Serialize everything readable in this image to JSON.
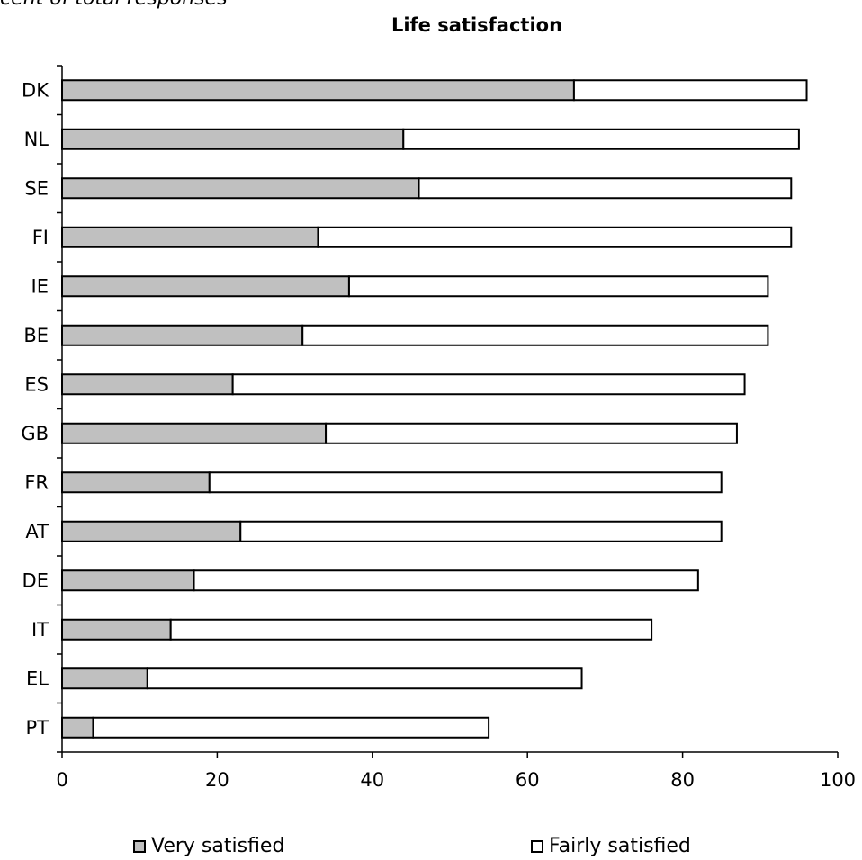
{
  "chart_data": {
    "type": "bar",
    "orientation": "horizontal",
    "stacked": true,
    "subtitle": "cent of total responses",
    "title": "Life satisfaction",
    "categories": [
      "DK",
      "NL",
      "SE",
      "FI",
      "IE",
      "BE",
      "ES",
      "GB",
      "FR",
      "AT",
      "DE",
      "IT",
      "EL",
      "PT"
    ],
    "series": [
      {
        "name": "Very satisfied",
        "color": "#c0c0c0",
        "values": [
          66,
          44,
          46,
          33,
          37,
          31,
          22,
          34,
          19,
          23,
          17,
          14,
          11,
          4
        ]
      },
      {
        "name": "Fairly satisfied",
        "color": "#ffffff",
        "values": [
          30,
          51,
          48,
          61,
          54,
          60,
          66,
          53,
          66,
          62,
          65,
          62,
          56,
          51
        ]
      }
    ],
    "xlim": [
      0,
      100
    ],
    "xticks": [
      0,
      20,
      40,
      60,
      80,
      100
    ],
    "grid": false,
    "legend_position": "bottom"
  }
}
